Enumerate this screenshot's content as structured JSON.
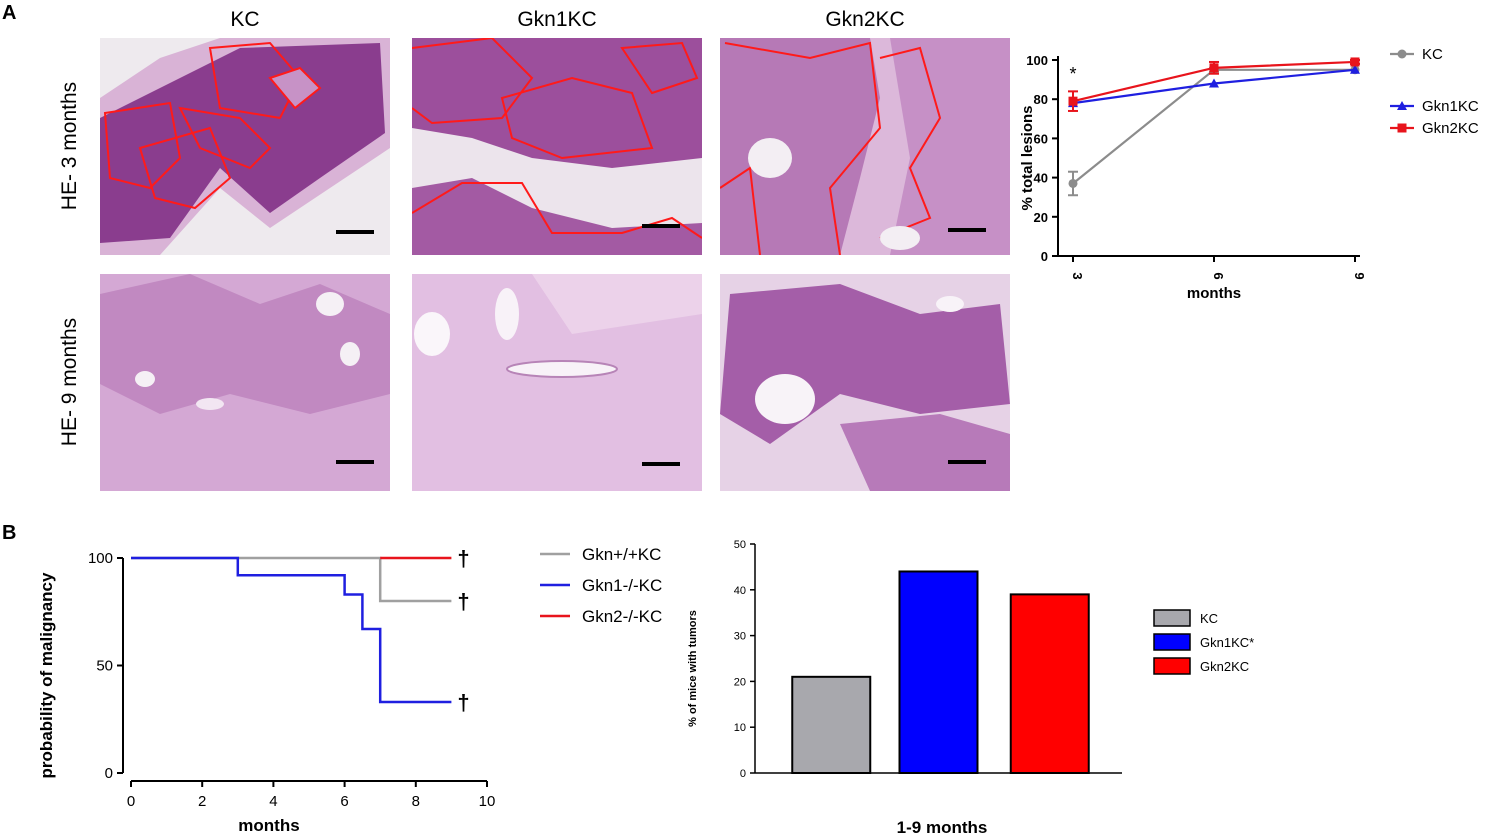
{
  "panels": {
    "a": "A",
    "b": "B"
  },
  "histology": {
    "columns": [
      "KC",
      "Gkn1KC",
      "Gkn2KC"
    ],
    "rows": [
      "HE- 3 months",
      "HE- 9 months"
    ]
  },
  "chart_data": [
    {
      "type": "line",
      "title": "",
      "xlabel": "months",
      "ylabel": "% total lesions",
      "x": [
        3,
        6,
        9
      ],
      "xticks": [
        "3",
        "6",
        "9"
      ],
      "ylim": [
        0,
        100
      ],
      "yticks": [
        0,
        20,
        40,
        60,
        80,
        100
      ],
      "series": [
        {
          "name": "KC",
          "values": [
            37,
            95,
            95
          ],
          "errors": [
            6,
            1,
            0
          ],
          "color": "#8c8c8c",
          "marker": "circle"
        },
        {
          "name": "Gkn1KC",
          "values": [
            78,
            88,
            95
          ],
          "errors": [
            0,
            0,
            0
          ],
          "color": "#1f1fe0",
          "marker": "triangle"
        },
        {
          "name": "Gkn2KC",
          "values": [
            79,
            96,
            99
          ],
          "errors": [
            5,
            3,
            1
          ],
          "color": "#e8141c",
          "marker": "square"
        }
      ],
      "annotations": [
        "*"
      ],
      "legend": "right"
    },
    {
      "type": "line",
      "title": "",
      "xlabel": "months",
      "ylabel": "probability of malignancy",
      "xlim": [
        0,
        10
      ],
      "xticks": [
        0,
        2,
        4,
        6,
        8,
        10
      ],
      "ylim": [
        0,
        100
      ],
      "yticks": [
        0,
        50,
        100
      ],
      "series": [
        {
          "name": "Gkn+/+KC",
          "color": "#a0a0a0",
          "steps": [
            [
              0,
              100
            ],
            [
              7,
              100
            ],
            [
              7,
              80
            ],
            [
              9,
              80
            ]
          ]
        },
        {
          "name": "Gkn1-/-KC",
          "color": "#1f1fe0",
          "steps": [
            [
              0,
              100
            ],
            [
              3,
              100
            ],
            [
              3,
              92
            ],
            [
              6,
              92
            ],
            [
              6,
              83
            ],
            [
              6.5,
              83
            ],
            [
              6.5,
              67
            ],
            [
              7,
              67
            ],
            [
              7,
              33
            ],
            [
              9,
              33
            ]
          ]
        },
        {
          "name": "Gkn2-/-KC",
          "color": "#e8141c",
          "steps": [
            [
              7,
              100
            ],
            [
              9,
              100
            ]
          ]
        }
      ],
      "annotations": [
        "†",
        "†",
        "†"
      ],
      "legend": "right"
    },
    {
      "type": "bar",
      "title": "",
      "xlabel": "1-9 months",
      "ylabel": "% of mice with tumors",
      "categories": [
        "KC",
        "Gkn1KC*",
        "Gkn2KC"
      ],
      "values": [
        21,
        44,
        39
      ],
      "colors": [
        "#a8a8ad",
        "#0000ff",
        "#ff0000"
      ],
      "ylim": [
        0,
        50
      ],
      "yticks": [
        0,
        10,
        20,
        30,
        40,
        50
      ],
      "legend": "right"
    }
  ]
}
